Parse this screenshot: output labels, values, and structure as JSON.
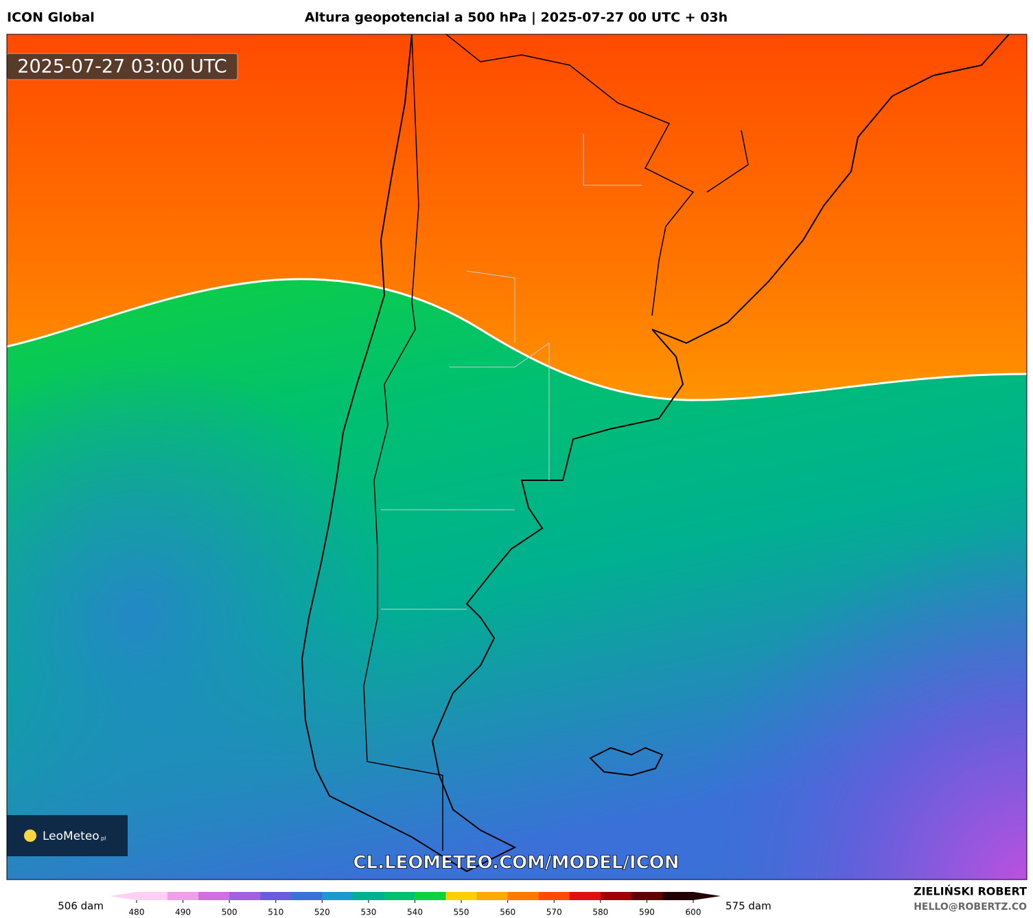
{
  "header": {
    "model": "ICON Global",
    "title": "Altura geopotencial a 500 hPa | 2025-07-27 00 UTC + 03h"
  },
  "map": {
    "timestamp": "2025-07-27 03:00 UTC",
    "logo": "LeoMeteo",
    "logo_suffix": "pl",
    "watermark": "CL.LEOMETEO.COM/MODEL/ICON"
  },
  "colorbar": {
    "min_label": "506 dam",
    "max_label": "575 dam",
    "ticks": [
      480,
      490,
      500,
      510,
      520,
      530,
      540,
      550,
      560,
      570,
      580,
      590,
      600
    ]
  },
  "credits": {
    "author": "ZIELIŃSKI ROBERT",
    "email": "HELLO@ROBERTZ.CO"
  }
}
